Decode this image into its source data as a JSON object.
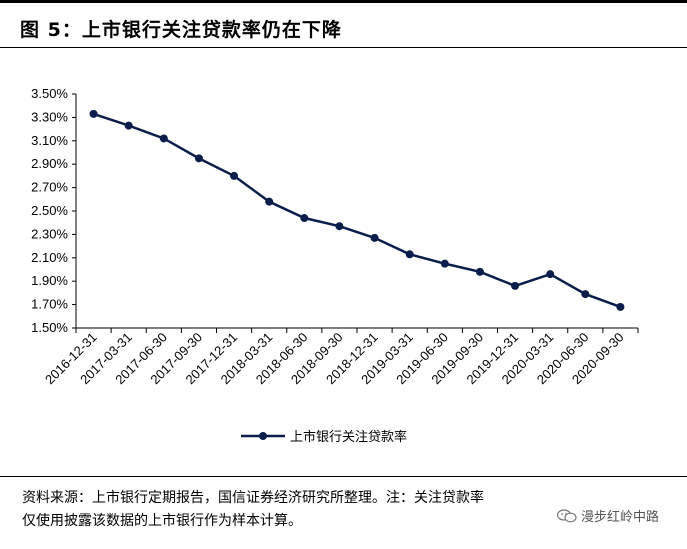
{
  "header": {
    "title": "图 5：上市银行关注贷款率仍在下降"
  },
  "chart_data": {
    "type": "line",
    "categories": [
      "2016-12-31",
      "2017-03-31",
      "2017-06-30",
      "2017-09-30",
      "2017-12-31",
      "2018-03-31",
      "2018-06-30",
      "2018-09-30",
      "2018-12-31",
      "2019-03-31",
      "2019-06-30",
      "2019-09-30",
      "2019-12-31",
      "2020-03-31",
      "2020-06-30",
      "2020-09-30"
    ],
    "series": [
      {
        "name": "上市银行关注贷款率",
        "values": [
          3.33,
          3.23,
          3.12,
          2.95,
          2.8,
          2.58,
          2.44,
          2.37,
          2.27,
          2.13,
          2.05,
          1.98,
          1.86,
          1.96,
          1.79,
          1.68
        ],
        "color": "#0b1e4b"
      }
    ],
    "ylim": [
      1.5,
      3.5
    ],
    "yticks": [
      "1.50%",
      "1.70%",
      "1.90%",
      "2.10%",
      "2.30%",
      "2.50%",
      "2.70%",
      "2.90%",
      "3.10%",
      "3.30%",
      "3.50%"
    ],
    "legend_position": "bottom",
    "grid": false
  },
  "footer": {
    "line1": "资料来源：上市银行定期报告，国信证券经济研究所整理。注：关注贷款率",
    "line2": "仅使用披露该数据的上市银行作为样本计算。"
  },
  "watermark": {
    "text": "漫步红岭中路",
    "icon": "wechat-icon"
  }
}
